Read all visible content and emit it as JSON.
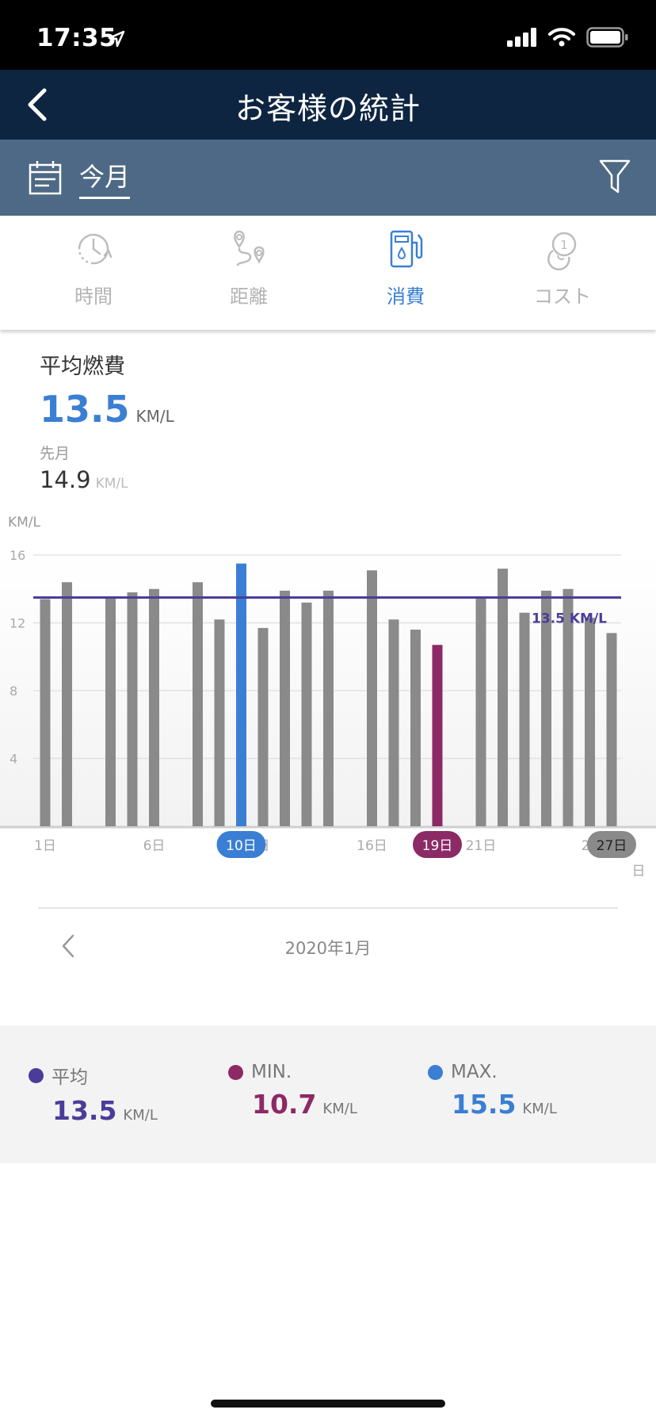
{
  "status": {
    "time": "17:35"
  },
  "header": {
    "title": "お客様の統計"
  },
  "period": {
    "label": "今月"
  },
  "tabs": [
    {
      "label": "時間",
      "icon": "clock-icon",
      "active": false
    },
    {
      "label": "距離",
      "icon": "route-icon",
      "active": false
    },
    {
      "label": "消費",
      "icon": "fuel-pump-icon",
      "active": true
    },
    {
      "label": "コスト",
      "icon": "coins-icon",
      "active": false
    }
  ],
  "summary": {
    "title": "平均燃費",
    "value": "13.5",
    "unit": "KM/L",
    "prev_label": "先月",
    "prev_value": "14.9",
    "prev_unit": "KM/L"
  },
  "chart_data": {
    "type": "bar",
    "ylabel": "KM/L",
    "ylim": [
      0,
      16
    ],
    "yticks": [
      "16",
      "12",
      "8",
      "4"
    ],
    "days": [
      1,
      2,
      4,
      5,
      6,
      8,
      9,
      10,
      11,
      12,
      13,
      14,
      16,
      17,
      18,
      19,
      21,
      22,
      23,
      24,
      25,
      26,
      27
    ],
    "values": [
      13.4,
      14.4,
      13.5,
      13.8,
      14.0,
      14.4,
      12.2,
      15.5,
      11.7,
      13.9,
      13.2,
      13.9,
      15.1,
      12.2,
      11.6,
      10.7,
      13.5,
      15.2,
      12.6,
      13.9,
      14.0,
      12.3,
      11.4
    ],
    "average": 13.5,
    "average_label": "13.5 KM/L",
    "x_labels": [
      {
        "day": 1,
        "text": "1日"
      },
      {
        "day": 6,
        "text": "6日"
      },
      {
        "day": 11,
        "text": "日"
      },
      {
        "day": 16,
        "text": "16日"
      },
      {
        "day": 21,
        "text": "21日"
      },
      {
        "day": 26,
        "text": "26"
      }
    ],
    "max_day": 10,
    "max_label": "10日",
    "min_day": 19,
    "min_label": "19日",
    "selected_day": 27,
    "selected_label": "27日",
    "trailing_label": "日",
    "colors": {
      "bar": "#8a8a8a",
      "max": "#3a7fd3",
      "min": "#8c2a66",
      "average": "#4a3d9a",
      "selected": "#8a8a8a"
    }
  },
  "month": {
    "label": "2020年1月"
  },
  "legend": {
    "avg": {
      "name": "平均",
      "value": "13.5",
      "unit": "KM/L",
      "color": "#4a3d9a"
    },
    "min": {
      "name": "MIN.",
      "value": "10.7",
      "unit": "KM/L",
      "color": "#8c2a66"
    },
    "max": {
      "name": "MAX.",
      "value": "15.5",
      "unit": "KM/L",
      "color": "#3a7fd3"
    }
  }
}
